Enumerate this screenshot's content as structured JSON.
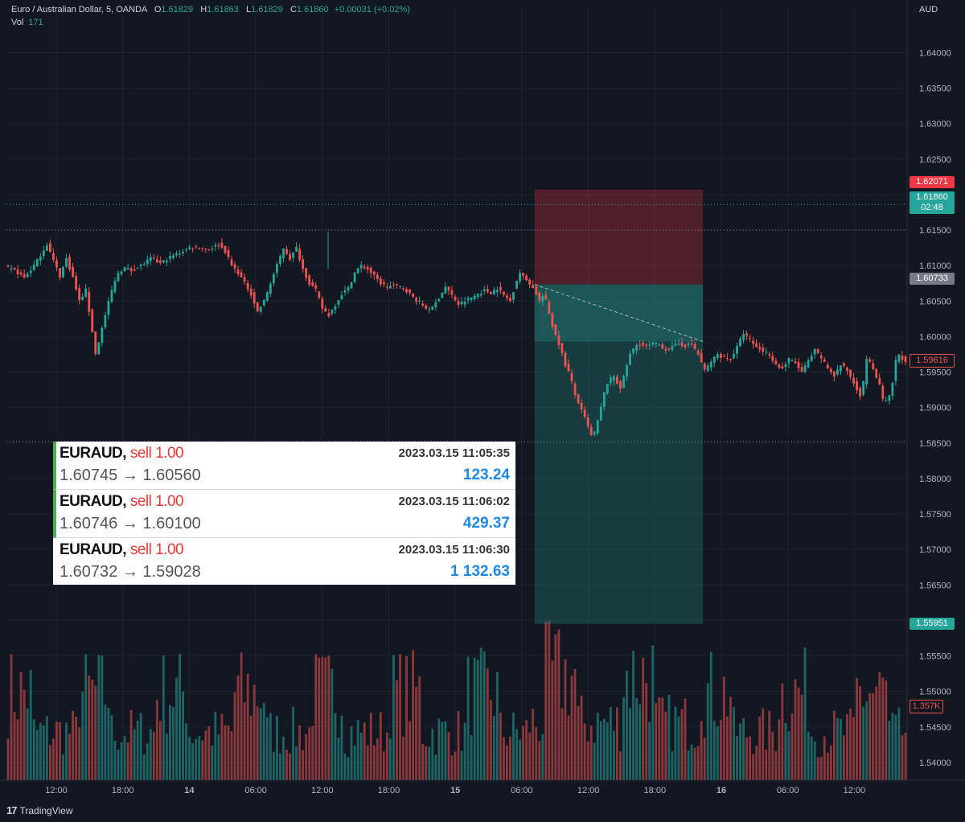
{
  "header": {
    "title": "Euro / Australian Dollar, 5, OANDA",
    "o_label": "O",
    "o_value": "1.61829",
    "h_label": "H",
    "h_value": "1.61863",
    "l_label": "L",
    "l_value": "1.61829",
    "c_label": "C",
    "c_value": "1.61860",
    "change": "+0.00031 (+0.02%)",
    "vol_label": "Vol",
    "vol_value": "171"
  },
  "axis_unit": "AUD",
  "price_tags": {
    "stop": "1.62071",
    "current": "1.61860",
    "countdown": "02:48",
    "entry": "1.60733",
    "last_visible": "1.59616",
    "target": "1.55951",
    "volume": "1.357K"
  },
  "colors": {
    "background": "#131722",
    "up": "#26a69a",
    "down": "#ef5350",
    "stop_zone": "#5a2a33",
    "target_zone": "#1e4a44",
    "profit_blue": "#1e88e5"
  },
  "trades": [
    {
      "symbol": "EURAUD,",
      "side": "sell 1.00",
      "time": "2023.03.15 11:05:35",
      "prices": "1.60745 → 1.60560",
      "profit": "123.24"
    },
    {
      "symbol": "EURAUD,",
      "side": "sell 1.00",
      "time": "2023.03.15 11:06:02",
      "prices": "1.60746 → 1.60100",
      "profit": "429.37"
    },
    {
      "symbol": "EURAUD,",
      "side": "sell 1.00",
      "time": "2023.03.15 11:06:30",
      "prices": "1.60732 → 1.59028",
      "profit": "1 132.63"
    }
  ],
  "footer": {
    "brand": "TradingView",
    "logo": "17"
  },
  "chart_data": {
    "type": "candlestick",
    "title": "Euro / Australian Dollar, 5, OANDA",
    "y_unit": "AUD",
    "ylim": [
      1.5375,
      1.6465
    ],
    "y_ticks": [
      "1.64000",
      "1.63500",
      "1.63000",
      "1.62500",
      "1.62000",
      "1.61500",
      "1.61000",
      "1.60500",
      "1.60000",
      "1.59500",
      "1.59000",
      "1.58500",
      "1.58000",
      "1.57500",
      "1.57000",
      "1.56500",
      "1.56000",
      "1.55500",
      "1.55000",
      "1.54500",
      "1.54000"
    ],
    "x_ticks": [
      {
        "label": "12:00",
        "bold": false
      },
      {
        "label": "18:00",
        "bold": false
      },
      {
        "label": "14",
        "bold": true
      },
      {
        "label": "06:00",
        "bold": false
      },
      {
        "label": "12:00",
        "bold": false
      },
      {
        "label": "18:00",
        "bold": false
      },
      {
        "label": "15",
        "bold": true
      },
      {
        "label": "06:00",
        "bold": false
      },
      {
        "label": "12:00",
        "bold": false
      },
      {
        "label": "18:00",
        "bold": false
      },
      {
        "label": "16",
        "bold": true
      },
      {
        "label": "06:00",
        "bold": false
      },
      {
        "label": "12:00",
        "bold": false
      }
    ],
    "price_path": [
      [
        0,
        1.6097
      ],
      [
        3,
        1.6093
      ],
      [
        6,
        1.6083
      ],
      [
        9,
        1.61
      ],
      [
        11,
        1.6115
      ],
      [
        13,
        1.613
      ],
      [
        15,
        1.6107
      ],
      [
        17,
        1.6085
      ],
      [
        19,
        1.611
      ],
      [
        21,
        1.6083
      ],
      [
        23,
        1.605
      ],
      [
        25,
        1.6065
      ],
      [
        27,
        1.6007
      ],
      [
        28,
        1.5975
      ],
      [
        31,
        1.603
      ],
      [
        33,
        1.6065
      ],
      [
        35,
        1.609
      ],
      [
        37,
        1.6097
      ],
      [
        39,
        1.6093
      ],
      [
        42,
        1.61
      ],
      [
        45,
        1.611
      ],
      [
        48,
        1.6103
      ],
      [
        51,
        1.6112
      ],
      [
        54,
        1.6118
      ],
      [
        57,
        1.6125
      ],
      [
        60,
        1.6125
      ],
      [
        63,
        1.6123
      ],
      [
        66,
        1.613
      ],
      [
        68,
        1.612
      ],
      [
        70,
        1.61
      ],
      [
        72,
        1.609
      ],
      [
        74,
        1.6075
      ],
      [
        76,
        1.606
      ],
      [
        78,
        1.6035
      ],
      [
        80,
        1.605
      ],
      [
        82,
        1.6075
      ],
      [
        84,
        1.61
      ],
      [
        86,
        1.6125
      ],
      [
        88,
        1.611
      ],
      [
        90,
        1.6125
      ],
      [
        92,
        1.6095
      ],
      [
        94,
        1.6075
      ],
      [
        96,
        1.6065
      ],
      [
        98,
        1.604
      ],
      [
        100,
        1.603
      ],
      [
        102,
        1.6045
      ],
      [
        104,
        1.606
      ],
      [
        106,
        1.6068
      ],
      [
        108,
        1.609
      ],
      [
        110,
        1.61
      ],
      [
        112,
        1.6095
      ],
      [
        114,
        1.6085
      ],
      [
        116,
        1.6075
      ],
      [
        118,
        1.607
      ],
      [
        120,
        1.6072
      ],
      [
        122,
        1.607
      ],
      [
        124,
        1.6065
      ],
      [
        126,
        1.6055
      ],
      [
        128,
        1.6048
      ],
      [
        130,
        1.604
      ],
      [
        132,
        1.604
      ],
      [
        134,
        1.6055
      ],
      [
        136,
        1.607
      ],
      [
        138,
        1.6058
      ],
      [
        140,
        1.6045
      ],
      [
        142,
        1.605
      ],
      [
        144,
        1.6055
      ],
      [
        146,
        1.606
      ],
      [
        148,
        1.6065
      ],
      [
        150,
        1.6062
      ],
      [
        152,
        1.6068
      ],
      [
        154,
        1.6058
      ],
      [
        156,
        1.605
      ],
      [
        157,
        1.6065
      ],
      [
        158,
        1.608
      ],
      [
        159,
        1.609
      ],
      [
        160,
        1.6084
      ],
      [
        162,
        1.6075
      ],
      [
        163,
        1.6068
      ],
      [
        164,
        1.606
      ],
      [
        165,
        1.605
      ],
      [
        166,
        1.6057
      ],
      [
        167,
        1.605
      ],
      [
        168,
        1.6032
      ],
      [
        169,
        1.6015
      ],
      [
        170,
        1.6003
      ],
      [
        171,
        1.599
      ],
      [
        172,
        1.5975
      ],
      [
        173,
        1.596
      ],
      [
        174,
        1.595
      ],
      [
        175,
        1.5935
      ],
      [
        176,
        1.5918
      ],
      [
        177,
        1.5907
      ],
      [
        178,
        1.5895
      ],
      [
        179,
        1.5885
      ],
      [
        180,
        1.5872
      ],
      [
        181,
        1.586
      ],
      [
        182,
        1.5865
      ],
      [
        183,
        1.588
      ],
      [
        184,
        1.59
      ],
      [
        185,
        1.592
      ],
      [
        186,
        1.5935
      ],
      [
        187,
        1.594
      ],
      [
        188,
        1.5945
      ],
      [
        189,
        1.5935
      ],
      [
        190,
        1.5928
      ],
      [
        191,
        1.5942
      ],
      [
        192,
        1.596
      ],
      [
        193,
        1.5975
      ],
      [
        194,
        1.5982
      ],
      [
        195,
        1.5988
      ],
      [
        196,
        1.599
      ],
      [
        198,
        1.5985
      ],
      [
        200,
        1.599
      ],
      [
        202,
        1.5988
      ],
      [
        204,
        1.5982
      ],
      [
        206,
        1.5985
      ],
      [
        208,
        1.599
      ],
      [
        210,
        1.5987
      ],
      [
        212,
        1.599
      ],
      [
        214,
        1.5975
      ],
      [
        216,
        1.5952
      ],
      [
        218,
        1.5965
      ],
      [
        220,
        1.5975
      ],
      [
        222,
        1.597
      ],
      [
        224,
        1.5968
      ],
      [
        226,
        1.5985
      ],
      [
        228,
        1.6005
      ],
      [
        230,
        1.5995
      ],
      [
        232,
        1.5985
      ],
      [
        234,
        1.598
      ],
      [
        236,
        1.5975
      ],
      [
        238,
        1.596
      ],
      [
        240,
        1.5955
      ],
      [
        242,
        1.5968
      ],
      [
        244,
        1.5962
      ],
      [
        246,
        1.595
      ],
      [
        248,
        1.5965
      ],
      [
        250,
        1.598
      ],
      [
        252,
        1.597
      ],
      [
        254,
        1.5955
      ],
      [
        256,
        1.5945
      ],
      [
        258,
        1.596
      ],
      [
        260,
        1.5952
      ],
      [
        262,
        1.5935
      ],
      [
        264,
        1.5918
      ],
      [
        265,
        1.5935
      ],
      [
        266,
        1.597
      ],
      [
        268,
        1.5955
      ],
      [
        270,
        1.593
      ],
      [
        271,
        1.5912
      ],
      [
        272,
        1.5908
      ],
      [
        273,
        1.5915
      ],
      [
        274,
        1.5935
      ],
      [
        275,
        1.5965
      ],
      [
        276,
        1.5975
      ],
      [
        277,
        1.597
      ],
      [
        278,
        1.5962
      ]
    ],
    "bars": 278,
    "position": {
      "type": "short",
      "entry": 1.60733,
      "stop": 1.62071,
      "target": 1.55951,
      "start_bar": 164,
      "end_bar": 213
    },
    "volume": {
      "last": "1.357K",
      "max": 1.0
    }
  }
}
